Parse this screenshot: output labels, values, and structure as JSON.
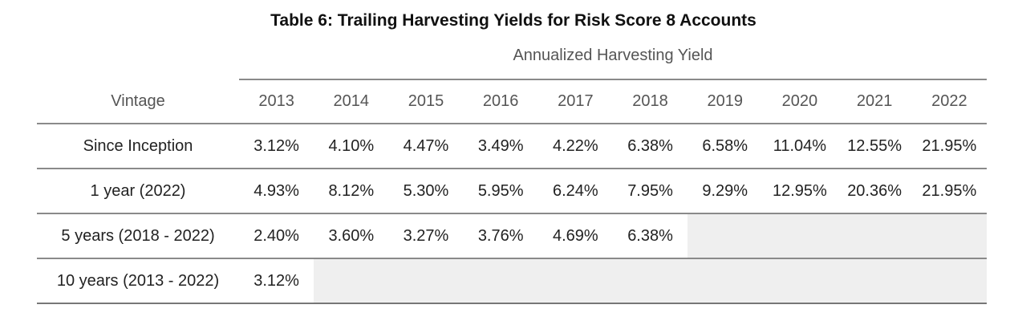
{
  "title": "Table 6: Trailing Harvesting Yields for Risk Score 8 Accounts",
  "spanner_label": "Annualized Harvesting Yield",
  "columns": {
    "vintage": "Vintage",
    "years": [
      "2013",
      "2014",
      "2015",
      "2016",
      "2017",
      "2018",
      "2019",
      "2020",
      "2021",
      "2022"
    ]
  },
  "rows": [
    {
      "label": "Since Inception",
      "values": [
        "3.12%",
        "4.10%",
        "4.47%",
        "3.49%",
        "4.22%",
        "6.38%",
        "6.58%",
        "11.04%",
        "12.55%",
        "21.95%"
      ]
    },
    {
      "label": "1 year (2022)",
      "values": [
        "4.93%",
        "8.12%",
        "5.30%",
        "5.95%",
        "6.24%",
        "7.95%",
        "9.29%",
        "12.95%",
        "20.36%",
        "21.95%"
      ]
    },
    {
      "label": "5 years (2018 - 2022)",
      "values": [
        "2.40%",
        "3.60%",
        "3.27%",
        "3.76%",
        "4.69%",
        "6.38%",
        "",
        "",
        "",
        ""
      ]
    },
    {
      "label": "10 years (2013 - 2022)",
      "values": [
        "3.12%",
        "",
        "",
        "",
        "",
        "",
        "",
        "",
        "",
        ""
      ]
    }
  ],
  "colors": {
    "title": "#111111",
    "header_text": "#555555",
    "body_text": "#222222",
    "rule": "#8a8a8a",
    "empty_cell": "#efefef"
  }
}
